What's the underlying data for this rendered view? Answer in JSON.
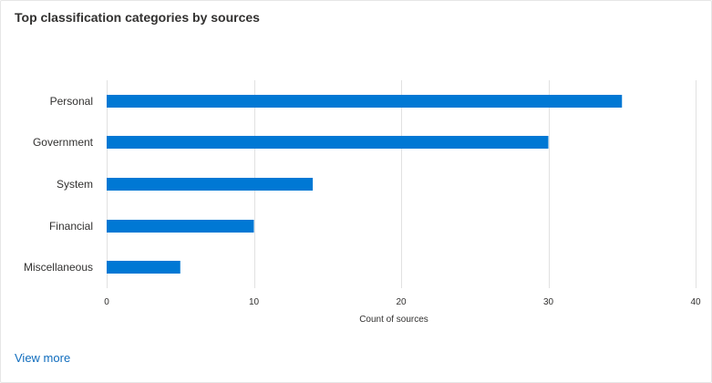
{
  "card": {
    "title": "Top classification categories by sources",
    "view_more_label": "View more"
  },
  "colors": {
    "bar": "#0078d4",
    "grid": "#e1e1e1",
    "link": "#0f6cbd",
    "text": "#323130"
  },
  "chart_data": {
    "type": "bar",
    "orientation": "horizontal",
    "categories": [
      "Personal",
      "Government",
      "System",
      "Financial",
      "Miscellaneous"
    ],
    "values": [
      35,
      30,
      14,
      10,
      5
    ],
    "xlabel": "Count of sources",
    "ylabel": "",
    "xlim": [
      0,
      40
    ],
    "xticks": [
      0,
      10,
      20,
      30,
      40
    ],
    "grid": true
  }
}
